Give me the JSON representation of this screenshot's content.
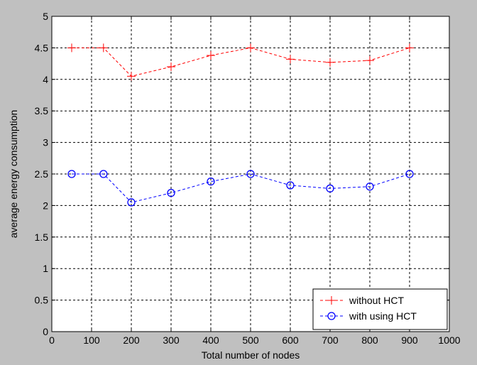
{
  "chart_data": {
    "type": "line",
    "title": "",
    "xlabel": "Total number of nodes",
    "ylabel": "average energy consumption",
    "xlim": [
      0,
      1000
    ],
    "ylim": [
      0,
      5
    ],
    "xticks": [
      0,
      100,
      200,
      300,
      400,
      500,
      600,
      700,
      800,
      900,
      1000
    ],
    "yticks": [
      0,
      0.5,
      1,
      1.5,
      2,
      2.5,
      3,
      3.5,
      4,
      4.5,
      5
    ],
    "x_tick_labels": [
      "0",
      "100",
      "200",
      "300",
      "400",
      "500",
      "600",
      "700",
      "800",
      "900",
      "1000"
    ],
    "y_tick_labels": [
      "0",
      "0.5",
      "1",
      "1.5",
      "2",
      "2.5",
      "3",
      "3.5",
      "4",
      "4.5",
      "5"
    ],
    "grid": true,
    "legend_position": "bottom-right",
    "series": [
      {
        "name": "without HCT",
        "color": "#ff0000",
        "marker": "plus",
        "line_style": "dashed",
        "points": [
          {
            "x": 50,
            "y": 4.5
          },
          {
            "x": 130,
            "y": 4.5
          },
          {
            "x": 200,
            "y": 4.05
          },
          {
            "x": 300,
            "y": 4.2
          },
          {
            "x": 400,
            "y": 4.38
          },
          {
            "x": 500,
            "y": 4.5
          },
          {
            "x": 600,
            "y": 4.32
          },
          {
            "x": 700,
            "y": 4.27
          },
          {
            "x": 800,
            "y": 4.3
          },
          {
            "x": 900,
            "y": 4.5
          }
        ]
      },
      {
        "name": "with using HCT",
        "color": "#0000ff",
        "marker": "circle",
        "line_style": "dashed",
        "points": [
          {
            "x": 50,
            "y": 2.5
          },
          {
            "x": 130,
            "y": 2.5
          },
          {
            "x": 200,
            "y": 2.05
          },
          {
            "x": 300,
            "y": 2.2
          },
          {
            "x": 400,
            "y": 2.38
          },
          {
            "x": 500,
            "y": 2.5
          },
          {
            "x": 600,
            "y": 2.32
          },
          {
            "x": 700,
            "y": 2.27
          },
          {
            "x": 800,
            "y": 2.3
          },
          {
            "x": 900,
            "y": 2.5
          }
        ]
      }
    ]
  }
}
